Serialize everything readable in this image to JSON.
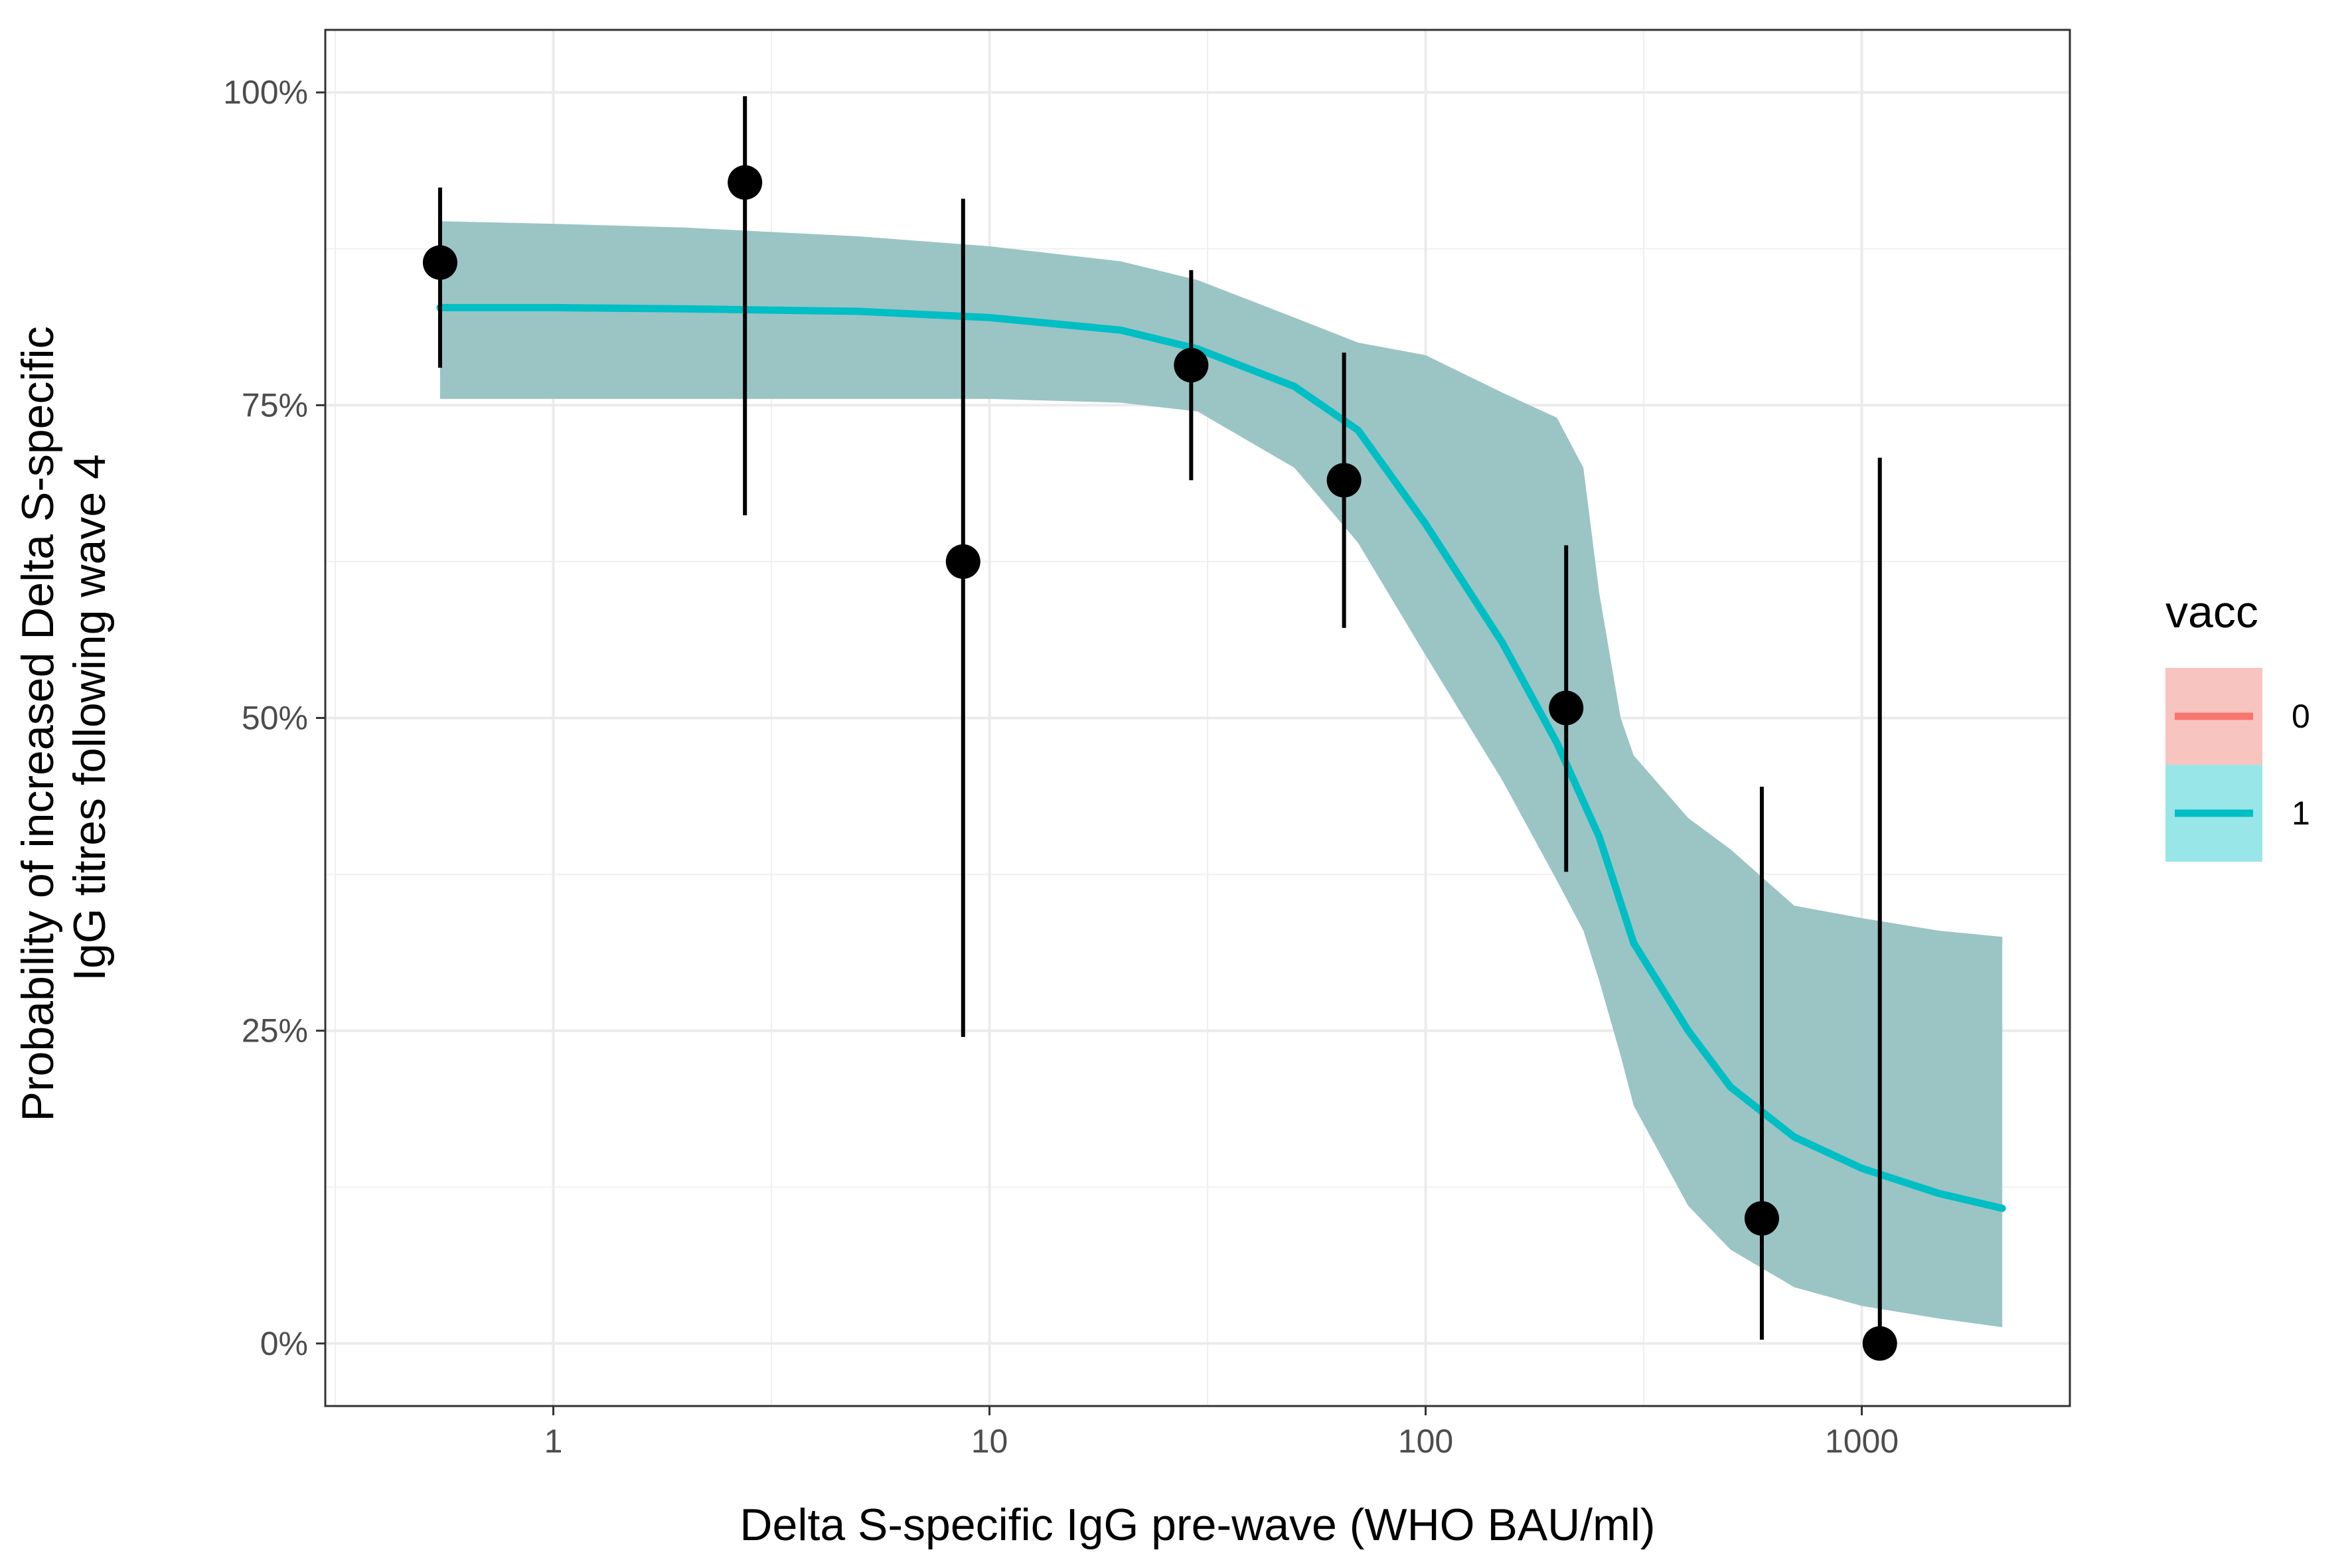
{
  "chart_data": {
    "type": "line",
    "xlabel": "Delta S-specific IgG pre-wave (WHO BAU/ml)",
    "ylabel_lines": [
      "Probability of increased Delta S-specific",
      "IgG titres following wave 4"
    ],
    "x_scale": "log10",
    "xlim": [
      0.3,
      3000
    ],
    "ylim": [
      -0.05,
      1.05
    ],
    "x_ticks": [
      1,
      10,
      100,
      1000
    ],
    "x_tick_labels": [
      "1",
      "10",
      "100",
      "1000"
    ],
    "y_ticks": [
      0,
      0.25,
      0.5,
      0.75,
      1.0
    ],
    "y_tick_labels": [
      "0%",
      "25%",
      "50%",
      "75%",
      "100%"
    ],
    "grid": true,
    "legend": {
      "title": "vacc",
      "placement": "right",
      "entries": [
        {
          "label": "0",
          "line_color": "#F8766D",
          "fill_color": "#F8C4BF"
        },
        {
          "label": "1",
          "line_color": "#00BFC4",
          "fill_color": "#99E6E8"
        }
      ]
    },
    "fitted_curve": {
      "name": "1",
      "color": "#00BFC4",
      "x": [
        0.55,
        1,
        2,
        5,
        10,
        20,
        30,
        50,
        70,
        100,
        150,
        200,
        250,
        300,
        400,
        500,
        700,
        1000,
        1500,
        2100
      ],
      "y": [
        0.828,
        0.828,
        0.827,
        0.825,
        0.82,
        0.81,
        0.795,
        0.765,
        0.73,
        0.655,
        0.56,
        0.48,
        0.405,
        0.32,
        0.25,
        0.205,
        0.165,
        0.14,
        0.12,
        0.108
      ]
    },
    "confidence_band": {
      "color": "#9BC4C5",
      "x": [
        0.55,
        1,
        2,
        5,
        10,
        20,
        30,
        50,
        70,
        100,
        150,
        200,
        230,
        250,
        280,
        300,
        400,
        500,
        700,
        1000,
        1500,
        2100
      ],
      "lower": [
        0.755,
        0.755,
        0.755,
        0.755,
        0.755,
        0.752,
        0.745,
        0.7,
        0.64,
        0.55,
        0.45,
        0.37,
        0.33,
        0.29,
        0.23,
        0.19,
        0.11,
        0.075,
        0.045,
        0.03,
        0.02,
        0.013
      ],
      "upper": [
        0.897,
        0.895,
        0.892,
        0.885,
        0.877,
        0.865,
        0.85,
        0.82,
        0.8,
        0.79,
        0.76,
        0.74,
        0.7,
        0.6,
        0.5,
        0.47,
        0.42,
        0.395,
        0.35,
        0.34,
        0.33,
        0.325
      ]
    },
    "observed_points": {
      "color": "#000000",
      "points": [
        {
          "x": 0.55,
          "y": 0.864,
          "low": 0.78,
          "high": 0.924
        },
        {
          "x": 2.75,
          "y": 0.928,
          "low": 0.662,
          "high": 0.997
        },
        {
          "x": 8.7,
          "y": 0.625,
          "low": 0.245,
          "high": 0.915
        },
        {
          "x": 29,
          "y": 0.782,
          "low": 0.69,
          "high": 0.858
        },
        {
          "x": 65,
          "y": 0.69,
          "low": 0.572,
          "high": 0.792
        },
        {
          "x": 210,
          "y": 0.508,
          "low": 0.377,
          "high": 0.638
        },
        {
          "x": 590,
          "y": 0.1,
          "low": 0.003,
          "high": 0.445
        },
        {
          "x": 1100,
          "y": 0.0,
          "low": 0.0,
          "high": 0.708
        }
      ]
    }
  }
}
